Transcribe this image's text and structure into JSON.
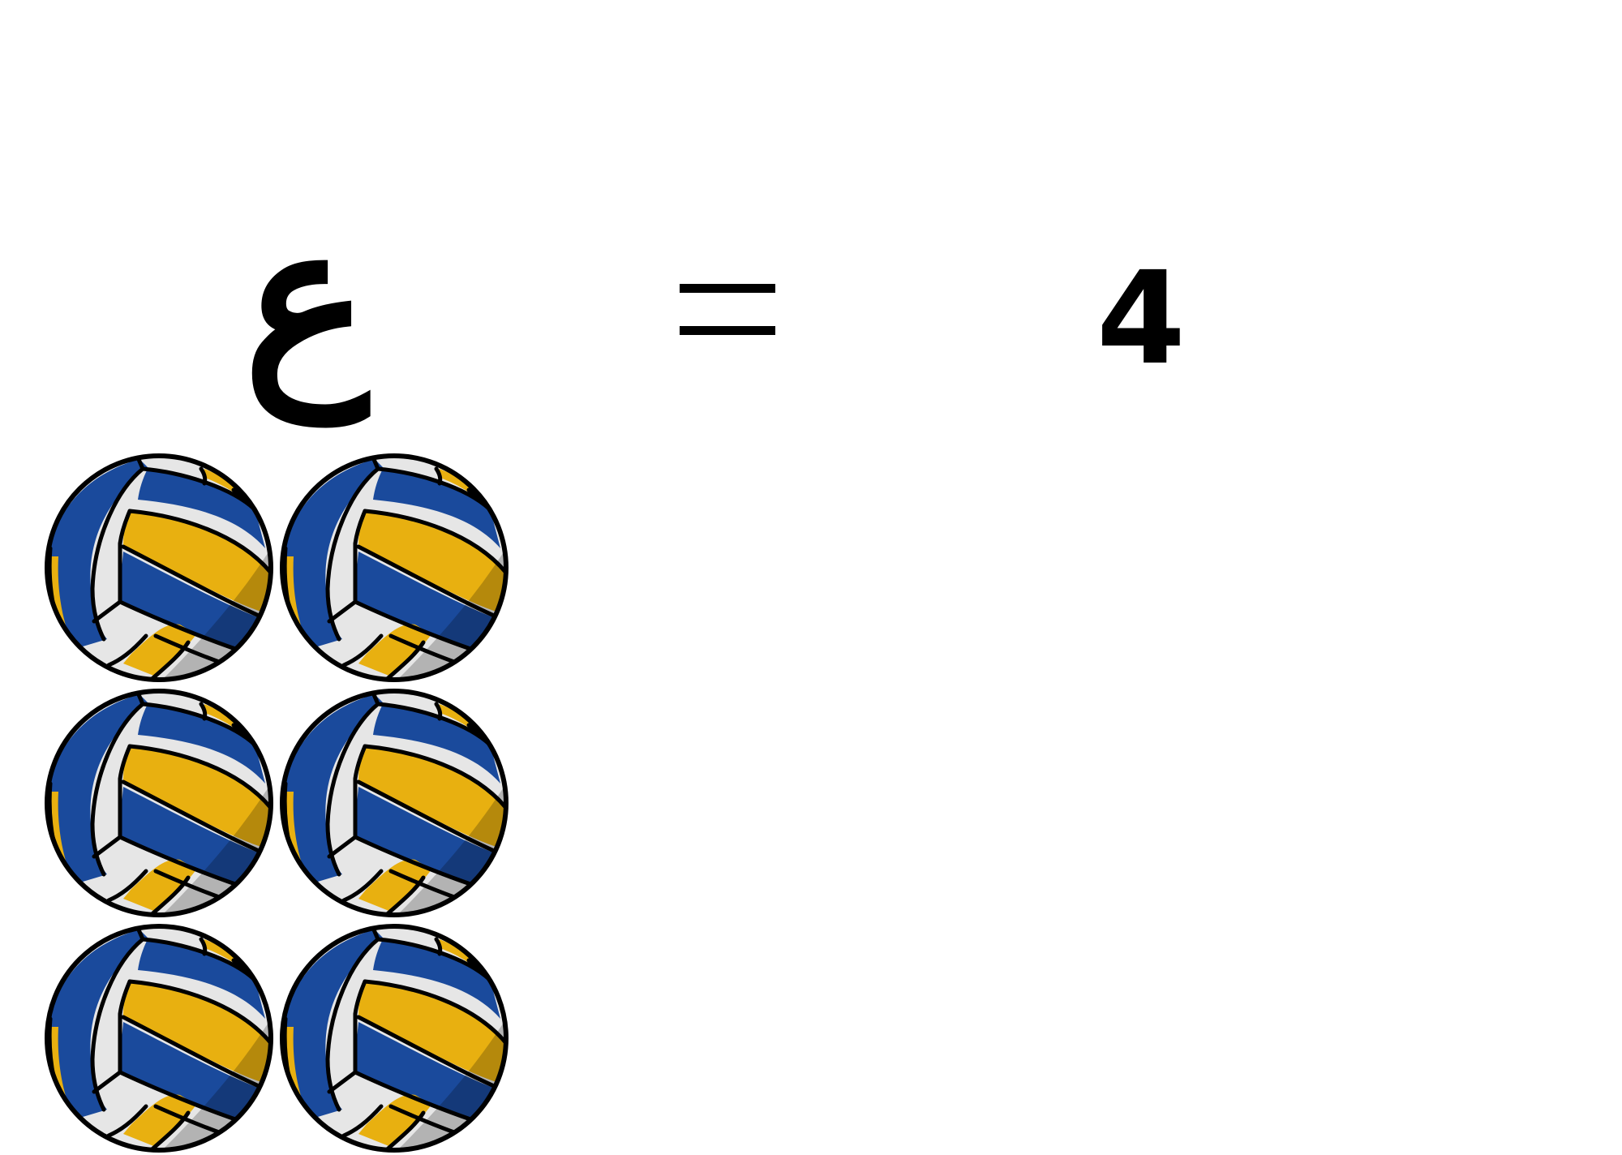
{
  "equation": {
    "left_symbol": "ع",
    "equals_sign": "=",
    "result": "4"
  },
  "picture": {
    "icon": "volleyball-icon",
    "count": 6,
    "colors": {
      "blue": "#1a4a9c",
      "yellow": "#e8b010",
      "white": "#e6e6e6",
      "outline": "#000000"
    }
  }
}
